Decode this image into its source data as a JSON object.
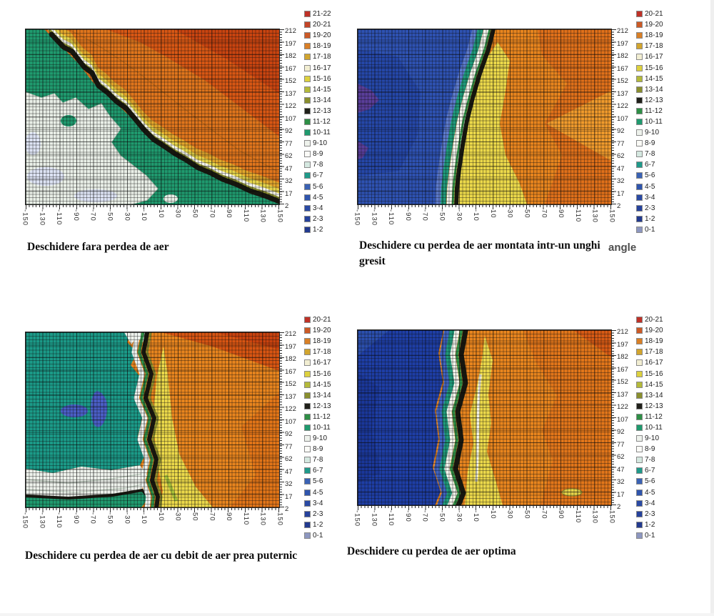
{
  "page": {
    "background": "#ffffff"
  },
  "axes": {
    "y_tick_labels": [
      "212",
      "197",
      "182",
      "167",
      "152",
      "137",
      "122",
      "107",
      "92",
      "77",
      "62",
      "47",
      "32",
      "17",
      "2"
    ],
    "x_tick_labels": [
      "-150",
      "-130",
      "-110",
      "-90",
      "-70",
      "-50",
      "-30",
      "-10",
      "10",
      "30",
      "50",
      "70",
      "90",
      "110",
      "130",
      "150"
    ]
  },
  "panels": [
    {
      "caption": "Deschidere fara perdea de aer",
      "legend": [
        {
          "range": "21-22",
          "color": "#bf3127"
        },
        {
          "range": "20-21",
          "color": "#c44527"
        },
        {
          "range": "19-20",
          "color": "#cc5a26"
        },
        {
          "range": "18-19",
          "color": "#d97f26"
        },
        {
          "range": "17-18",
          "color": "#d2a52e"
        },
        {
          "range": "16-17",
          "color": "#f2eed2"
        },
        {
          "range": "15-16",
          "color": "#ddd13e"
        },
        {
          "range": "14-15",
          "color": "#b4ba3a"
        },
        {
          "range": "13-14",
          "color": "#8a8f2e"
        },
        {
          "range": "12-13",
          "color": "#20201a"
        },
        {
          "range": "11-12",
          "color": "#2e8f46"
        },
        {
          "range": "10-11",
          "color": "#1f9a6e"
        },
        {
          "range": "9-10",
          "color": "#eef2ec"
        },
        {
          "range": "8-9",
          "color": "#fbfbf7"
        },
        {
          "range": "7-8",
          "color": "#d5e8e0"
        },
        {
          "range": "6-7",
          "color": "#1f9a8a"
        },
        {
          "range": "5-6",
          "color": "#3a62b4"
        },
        {
          "range": "4-5",
          "color": "#2f55ad"
        },
        {
          "range": "3-4",
          "color": "#2a4aa4"
        },
        {
          "range": "2-3",
          "color": "#26429c"
        },
        {
          "range": "1-2",
          "color": "#223a8f"
        }
      ]
    },
    {
      "caption": "Deschidere cu perdea de aer montata intr-un unghi gresit",
      "side_label": "angle",
      "legend": [
        {
          "range": "20-21",
          "color": "#bf3127"
        },
        {
          "range": "19-20",
          "color": "#cc5a26"
        },
        {
          "range": "18-19",
          "color": "#d97f26"
        },
        {
          "range": "17-18",
          "color": "#d2a52e"
        },
        {
          "range": "16-17",
          "color": "#f2eed2"
        },
        {
          "range": "15-16",
          "color": "#ddd13e"
        },
        {
          "range": "14-15",
          "color": "#b4ba3a"
        },
        {
          "range": "13-14",
          "color": "#8a8f2e"
        },
        {
          "range": "12-13",
          "color": "#20201a"
        },
        {
          "range": "11-12",
          "color": "#2e8f46"
        },
        {
          "range": "10-11",
          "color": "#1f9a6e"
        },
        {
          "range": "9-10",
          "color": "#eef2ec"
        },
        {
          "range": "8-9",
          "color": "#fbfbf7"
        },
        {
          "range": "7-8",
          "color": "#d5e8e0"
        },
        {
          "range": "6-7",
          "color": "#1f9a8a"
        },
        {
          "range": "5-6",
          "color": "#3a62b4"
        },
        {
          "range": "4-5",
          "color": "#2f55ad"
        },
        {
          "range": "3-4",
          "color": "#2a4aa4"
        },
        {
          "range": "2-3",
          "color": "#26429c"
        },
        {
          "range": "1-2",
          "color": "#223a8f"
        },
        {
          "range": "0-1",
          "color": "#8d97c0"
        }
      ]
    },
    {
      "caption": "Deschidere cu perdea de aer cu debit de aer prea puternic",
      "legend": [
        {
          "range": "20-21",
          "color": "#bf3127"
        },
        {
          "range": "19-20",
          "color": "#cc5a26"
        },
        {
          "range": "18-19",
          "color": "#d97f26"
        },
        {
          "range": "17-18",
          "color": "#d2a52e"
        },
        {
          "range": "16-17",
          "color": "#f2eed2"
        },
        {
          "range": "15-16",
          "color": "#ddd13e"
        },
        {
          "range": "14-15",
          "color": "#b4ba3a"
        },
        {
          "range": "13-14",
          "color": "#8a8f2e"
        },
        {
          "range": "12-13",
          "color": "#20201a"
        },
        {
          "range": "11-12",
          "color": "#2e8f46"
        },
        {
          "range": "10-11",
          "color": "#1f9a6e"
        },
        {
          "range": "9-10",
          "color": "#eef2ec"
        },
        {
          "range": "8-9",
          "color": "#fbfbf7"
        },
        {
          "range": "7-8",
          "color": "#d5e8e0"
        },
        {
          "range": "6-7",
          "color": "#1f9a8a"
        },
        {
          "range": "5-6",
          "color": "#3a62b4"
        },
        {
          "range": "4-5",
          "color": "#2f55ad"
        },
        {
          "range": "3-4",
          "color": "#2a4aa4"
        },
        {
          "range": "2-3",
          "color": "#26429c"
        },
        {
          "range": "1-2",
          "color": "#223a8f"
        },
        {
          "range": "0-1",
          "color": "#8d97c0"
        }
      ]
    },
    {
      "caption": "Deschidere cu perdea de aer optima",
      "legend": [
        {
          "range": "20-21",
          "color": "#bf3127"
        },
        {
          "range": "19-20",
          "color": "#cc5a26"
        },
        {
          "range": "18-19",
          "color": "#d97f26"
        },
        {
          "range": "17-18",
          "color": "#d2a52e"
        },
        {
          "range": "16-17",
          "color": "#f2eed2"
        },
        {
          "range": "15-16",
          "color": "#ddd13e"
        },
        {
          "range": "14-15",
          "color": "#b4ba3a"
        },
        {
          "range": "13-14",
          "color": "#8a8f2e"
        },
        {
          "range": "12-13",
          "color": "#20201a"
        },
        {
          "range": "11-12",
          "color": "#2e8f46"
        },
        {
          "range": "10-11",
          "color": "#1f9a6e"
        },
        {
          "range": "9-10",
          "color": "#eef2ec"
        },
        {
          "range": "8-9",
          "color": "#fbfbf7"
        },
        {
          "range": "7-8",
          "color": "#d5e8e0"
        },
        {
          "range": "6-7",
          "color": "#1f9a8a"
        },
        {
          "range": "5-6",
          "color": "#3a62b4"
        },
        {
          "range": "4-5",
          "color": "#2f55ad"
        },
        {
          "range": "3-4",
          "color": "#2a4aa4"
        },
        {
          "range": "2-3",
          "color": "#26429c"
        },
        {
          "range": "1-2",
          "color": "#223a8f"
        },
        {
          "range": "0-1",
          "color": "#8d97c0"
        }
      ]
    }
  ],
  "chart_data": [
    {
      "type": "contour",
      "title": "Deschidere fara perdea de aer",
      "x_ticks": [
        -150,
        -130,
        -110,
        -90,
        -70,
        -50,
        -30,
        -10,
        10,
        30,
        50,
        70,
        90,
        110,
        130,
        150
      ],
      "y_ticks": [
        2,
        17,
        32,
        47,
        62,
        77,
        92,
        107,
        122,
        137,
        152,
        167,
        182,
        197,
        212
      ],
      "x_range": [
        -150,
        150
      ],
      "y_range": [
        2,
        212
      ],
      "bands": [
        "1-2",
        "2-3",
        "3-4",
        "4-5",
        "5-6",
        "6-7",
        "7-8",
        "8-9",
        "9-10",
        "10-11",
        "11-12",
        "12-13",
        "13-14",
        "14-15",
        "15-16",
        "16-17",
        "17-18",
        "18-19",
        "19-20",
        "20-21",
        "21-22"
      ],
      "grid": true,
      "legend_position": "right",
      "regions": "warm bands 17-22 (orange/red) fill the upper-right half, hottest in the top-right corner; a stepped diagonal transition of bands 12-16 (black, olive, yellow, white) runs from the top-left corner to the lower-right corner; bands 9-11 (green) with large pale 8-10 white patches fill the lower-left half"
    },
    {
      "type": "contour",
      "title": "Deschidere cu perdea de aer montata intr-un unghi gresit",
      "x_ticks": [
        -150,
        -130,
        -110,
        -90,
        -70,
        -50,
        -30,
        -10,
        10,
        30,
        50,
        70,
        90,
        110,
        130,
        150
      ],
      "y_ticks": [
        2,
        17,
        32,
        47,
        62,
        77,
        92,
        107,
        122,
        137,
        152,
        167,
        182,
        197,
        212
      ],
      "x_range": [
        -150,
        150
      ],
      "y_range": [
        2,
        212
      ],
      "bands": [
        "0-1",
        "1-2",
        "2-3",
        "3-4",
        "4-5",
        "5-6",
        "6-7",
        "7-8",
        "8-9",
        "9-10",
        "10-11",
        "11-12",
        "12-13",
        "13-14",
        "14-15",
        "15-16",
        "16-17",
        "17-18",
        "18-19",
        "19-20",
        "20-21"
      ],
      "grid": true,
      "legend_position": "right",
      "regions": "left third is cold blue (bands 1-5) with small purple 0-1 patches at the left edge; a near-vertical transition around x=-30 holds teal, white and black bands (6-13); right two-thirds are warm orange (16-19) with a large yellow 15-16 area in the lower middle"
    },
    {
      "type": "contour",
      "title": "Deschidere cu perdea de aer cu debit de aer prea puternic",
      "x_ticks": [
        -150,
        -130,
        -110,
        -90,
        -70,
        -50,
        -30,
        -10,
        10,
        30,
        50,
        70,
        90,
        110,
        130,
        150
      ],
      "y_ticks": [
        2,
        17,
        32,
        47,
        62,
        77,
        92,
        107,
        122,
        137,
        152,
        167,
        182,
        197,
        212
      ],
      "x_range": [
        -150,
        150
      ],
      "y_range": [
        2,
        212
      ],
      "bands": [
        "0-1",
        "1-2",
        "2-3",
        "3-4",
        "4-5",
        "5-6",
        "6-7",
        "7-8",
        "8-9",
        "9-10",
        "10-11",
        "11-12",
        "12-13",
        "13-14",
        "14-15",
        "15-16",
        "16-17",
        "17-18",
        "18-19",
        "19-20",
        "20-21"
      ],
      "grid": true,
      "legend_position": "right",
      "regions": "left half is teal band 10-11 with two small blue 4-6 spots and a pale white 8-10 zone along the bottom-left; a sharp vertical transition near x=-10 (white, black, olive); right half is warm orange 16-19 with a yellow 15-16 strip beside the transition and darkest red 19-21 in the top-right corner"
    },
    {
      "type": "contour",
      "title": "Deschidere cu perdea de aer optima",
      "x_ticks": [
        -150,
        -130,
        -110,
        -90,
        -70,
        -50,
        -30,
        -10,
        10,
        30,
        50,
        70,
        90,
        110,
        130,
        150
      ],
      "y_ticks": [
        2,
        17,
        32,
        47,
        62,
        77,
        92,
        107,
        122,
        137,
        152,
        167,
        182,
        197,
        212
      ],
      "x_range": [
        -150,
        150
      ],
      "y_range": [
        2,
        212
      ],
      "bands": [
        "0-1",
        "1-2",
        "2-3",
        "3-4",
        "4-5",
        "5-6",
        "6-7",
        "7-8",
        "8-9",
        "9-10",
        "10-11",
        "11-12",
        "12-13",
        "13-14",
        "14-15",
        "15-16",
        "16-17",
        "17-18",
        "18-19",
        "19-20",
        "20-21"
      ],
      "grid": true,
      "legend_position": "right",
      "regions": "left 40% is uniform cold navy (bands 1-4); a wavy vertical transition near x=-40..-10 with teal, white, green and black bands (6-13); right side is warm orange (16-19) with a yellow 15-16 band along the transition and at the bottom"
    }
  ]
}
